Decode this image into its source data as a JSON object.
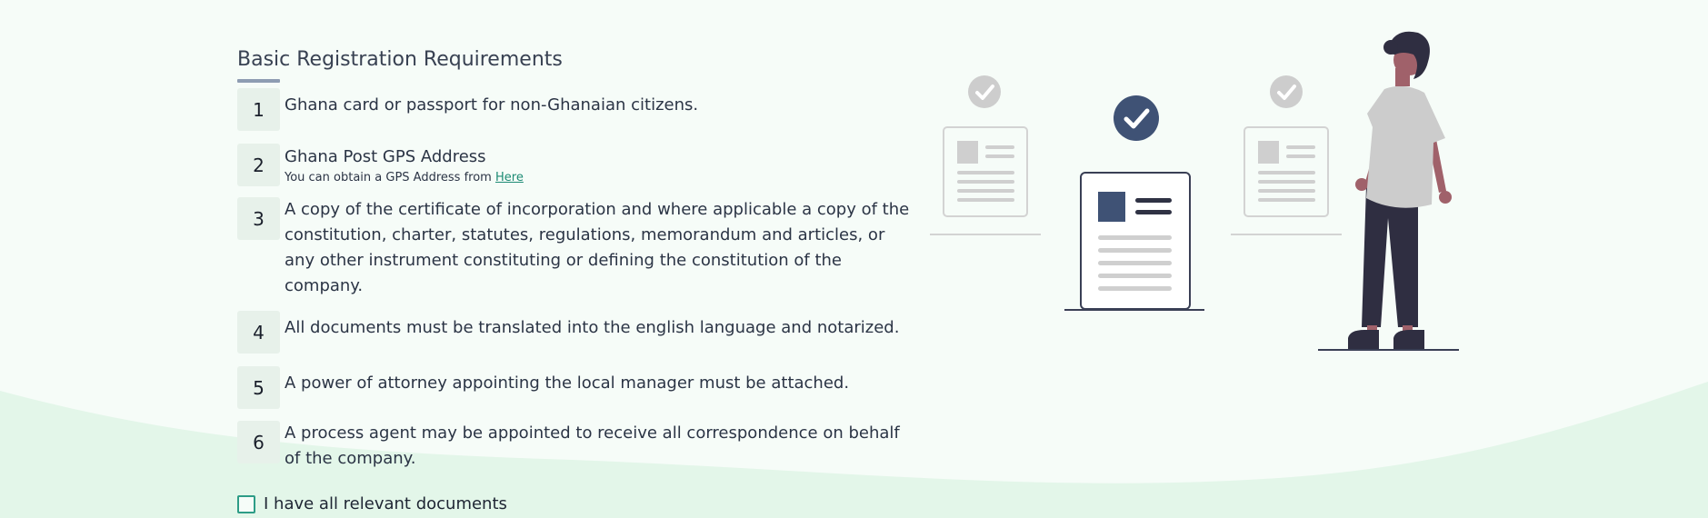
{
  "colors": {
    "background": "#f6fcf8",
    "wave": "#e3f6e9",
    "accent_teal": "#2d9c86",
    "number_box": "#e7f1ea",
    "illustration_dark": "#3f5275",
    "illustration_gray": "#c9c9c9"
  },
  "section": {
    "title": "Basic Registration Requirements"
  },
  "requirements": [
    {
      "number": "1",
      "text": "Ghana card or passport for non-Ghanaian citizens."
    },
    {
      "number": "2",
      "text": "Ghana Post GPS Address",
      "note": "You can obtain a GPS Address from",
      "link_text": "Here"
    },
    {
      "number": "3",
      "text": "A copy of the certificate of incorporation and where applicable a copy of the constitution, charter, statutes, regulations, memorandum and articles, or any other instrument constituting or defining the constitution of the company."
    },
    {
      "number": "4",
      "text": "All documents must be translated into the english language and notarized."
    },
    {
      "number": "5",
      "text": "A power of attorney appointing the local manager must be attached."
    },
    {
      "number": "6",
      "text": "A process agent may be appointed to receive all correspondence on behalf of the company."
    }
  ],
  "confirmation": {
    "checkbox_label": "I have all relevant documents",
    "checked": false
  },
  "illustration": {
    "icons": [
      "check-circle-icon",
      "document-icon",
      "person-figure"
    ]
  }
}
